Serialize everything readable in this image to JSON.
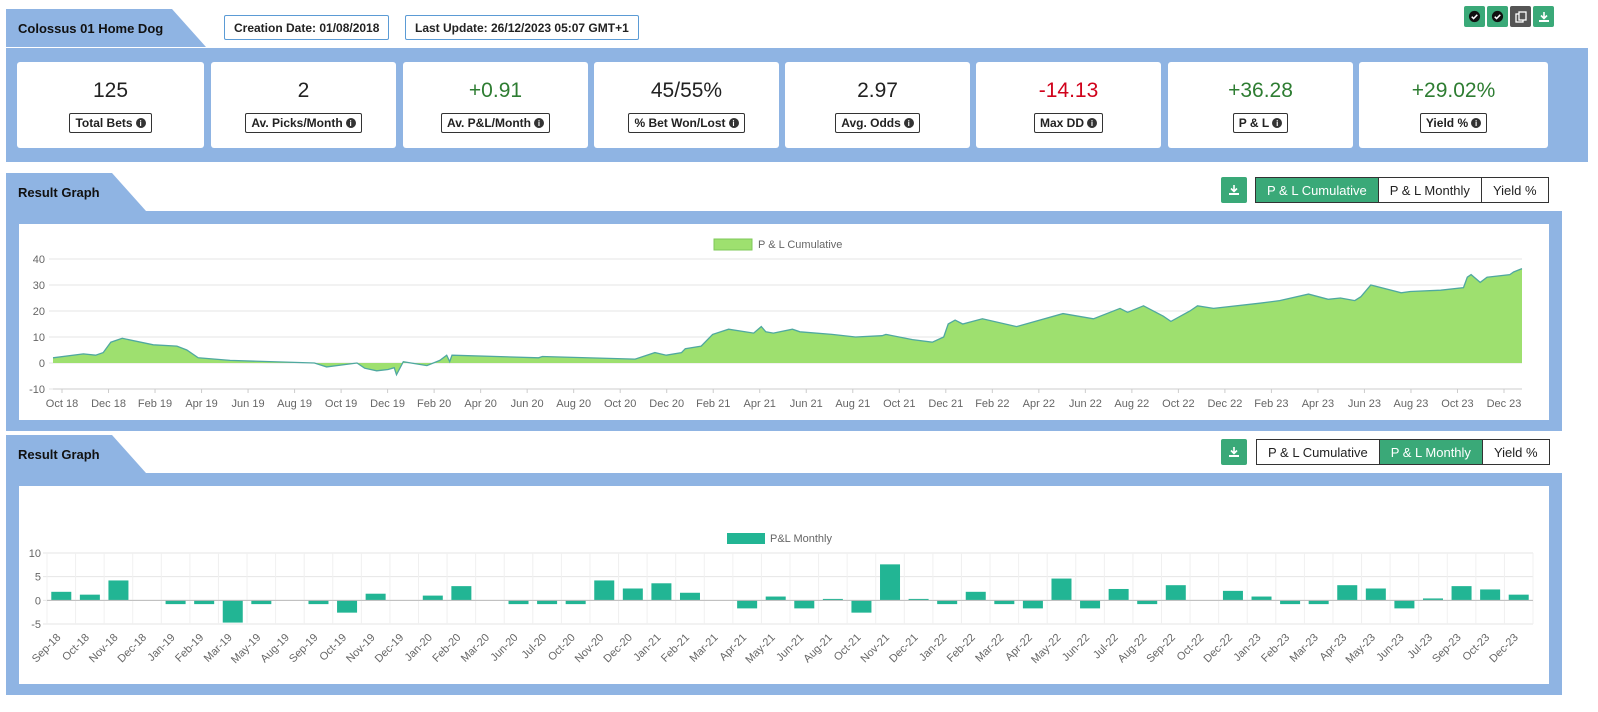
{
  "header": {
    "title": "Colossus 01 Home Dog",
    "creation_date": "Creation Date: 01/08/2018",
    "last_update": "Last Update: 26/12/2023 05:07 GMT+1"
  },
  "top_icons": [
    {
      "name": "check-circle-icon",
      "color": "#3aa978"
    },
    {
      "name": "check-circle-icon",
      "color": "#3aa978"
    },
    {
      "name": "copy-icon",
      "color": "#555555"
    },
    {
      "name": "download-icon",
      "color": "#3aa978"
    }
  ],
  "stats": [
    {
      "value": "125",
      "label": "Total Bets",
      "tone": "neu"
    },
    {
      "value": "2",
      "label": "Av. Picks/Month",
      "tone": "neu"
    },
    {
      "value": "+0.91",
      "label": "Av. P&L/Month",
      "tone": "pos"
    },
    {
      "value": "45/55%",
      "label": "% Bet Won/Lost",
      "tone": "neu"
    },
    {
      "value": "2.97",
      "label": "Avg. Odds",
      "tone": "neu"
    },
    {
      "value": "-14.13",
      "label": "Max DD",
      "tone": "neg"
    },
    {
      "value": "+36.28",
      "label": "P & L",
      "tone": "pos"
    },
    {
      "value": "+29.02%",
      "label": "Yield %",
      "tone": "pos"
    }
  ],
  "graph1": {
    "title": "Result Graph",
    "buttons": [
      "P & L Cumulative",
      "P & L Monthly",
      "Yield %"
    ],
    "active": 0
  },
  "graph2": {
    "title": "Result Graph",
    "buttons": [
      "P & L Cumulative",
      "P & L Monthly",
      "Yield %"
    ],
    "active": 1
  },
  "chart_data": [
    {
      "type": "area",
      "legend": "P & L Cumulative",
      "color": "#9ee06f",
      "line_color": "#4fa8a0",
      "ylim": [
        -10,
        40
      ],
      "yticks": [
        -10,
        0,
        10,
        20,
        30,
        40
      ],
      "x_tick_labels": [
        "Oct 18",
        "Dec 18",
        "Feb 19",
        "Apr 19",
        "Jun 19",
        "Aug 19",
        "Oct 19",
        "Dec 19",
        "Feb 20",
        "Apr 20",
        "Jun 20",
        "Aug 20",
        "Oct 20",
        "Dec 20",
        "Feb 21",
        "Apr 21",
        "Jun 21",
        "Aug 21",
        "Oct 21",
        "Dec 21",
        "Feb 22",
        "Apr 22",
        "Jun 22",
        "Aug 22",
        "Oct 22",
        "Dec 22",
        "Feb 23",
        "Apr 23",
        "Jun 23",
        "Aug 23",
        "Oct 23",
        "Dec 23"
      ],
      "x_range": [
        "2018-09-10",
        "2023-12-26"
      ],
      "x": [
        "2018-09-10",
        "2018-10-20",
        "2018-11-05",
        "2018-11-15",
        "2018-11-25",
        "2018-12-10",
        "2019-01-20",
        "2019-02-20",
        "2019-03-05",
        "2019-03-20",
        "2019-05-01",
        "2019-08-20",
        "2019-09-05",
        "2019-10-15",
        "2019-10-25",
        "2019-11-10",
        "2019-11-25",
        "2019-12-03",
        "2019-12-06",
        "2019-12-15",
        "2020-01-15",
        "2020-02-01",
        "2020-02-10",
        "2020-02-14",
        "2020-02-17",
        "2020-06-10",
        "2020-06-15",
        "2020-10-15",
        "2020-11-10",
        "2020-11-25",
        "2020-12-15",
        "2020-12-20",
        "2021-01-10",
        "2021-01-25",
        "2021-02-15",
        "2021-03-20",
        "2021-03-30",
        "2021-04-05",
        "2021-04-15",
        "2021-05-10",
        "2021-05-20",
        "2021-07-01",
        "2021-08-01",
        "2021-09-05",
        "2021-09-10",
        "2021-10-15",
        "2021-11-10",
        "2021-11-25",
        "2021-12-01",
        "2021-12-10",
        "2021-12-20",
        "2022-01-15",
        "2022-03-01",
        "2022-05-01",
        "2022-06-10",
        "2022-07-15",
        "2022-07-25",
        "2022-08-15",
        "2022-09-10",
        "2022-09-20",
        "2022-10-15",
        "2022-10-25",
        "2022-11-15",
        "2023-01-15",
        "2023-02-10",
        "2023-03-20",
        "2023-04-15",
        "2023-05-01",
        "2023-05-20",
        "2023-05-28",
        "2023-06-10",
        "2023-07-20",
        "2023-08-01",
        "2023-09-10",
        "2023-10-10",
        "2023-10-15",
        "2023-10-20",
        "2023-11-01",
        "2023-11-10",
        "2023-12-10",
        "2023-12-15",
        "2023-12-26"
      ],
      "values": [
        2,
        3.5,
        3,
        4,
        8,
        9.5,
        7,
        6.5,
        5,
        2,
        1,
        0,
        -1.5,
        0,
        -2,
        -3,
        -2.5,
        -1.8,
        -4.5,
        0.5,
        -1,
        1,
        3,
        0.5,
        3,
        2,
        2.5,
        1.5,
        4,
        3,
        4,
        5.5,
        6.5,
        11,
        13,
        11.5,
        14,
        12,
        11.5,
        13,
        12,
        11,
        10,
        10.5,
        11,
        9,
        8,
        10,
        15,
        16.5,
        15,
        17,
        14,
        19,
        17,
        21,
        19.5,
        22,
        18,
        16,
        20,
        22,
        21,
        23,
        24,
        26.5,
        24.5,
        25,
        24,
        25.5,
        30,
        27,
        27.5,
        28,
        29,
        33,
        34,
        31,
        33,
        34,
        35,
        36.3
      ]
    },
    {
      "type": "bar",
      "legend": "P&L Monthly",
      "color": "#22b594",
      "ylim": [
        -5,
        10
      ],
      "yticks": [
        -5,
        0,
        5,
        10
      ],
      "categories": [
        "Sep-18",
        "Oct-18",
        "Nov-18",
        "Dec-18",
        "Jan-19",
        "Feb-19",
        "Mar-19",
        "May-19",
        "Aug-19",
        "Sep-19",
        "Oct-19",
        "Nov-19",
        "Dec-19",
        "Jan-20",
        "Feb-20",
        "Mar-20",
        "Jun-20",
        "Jul-20",
        "Oct-20",
        "Nov-20",
        "Dec-20",
        "Jan-21",
        "Feb-21",
        "Mar-21",
        "Apr-21",
        "May-21",
        "Jun-21",
        "Aug-21",
        "Oct-21",
        "Nov-21",
        "Dec-21",
        "Jan-22",
        "Feb-22",
        "Mar-22",
        "Apr-22",
        "May-22",
        "Jun-22",
        "Jul-22",
        "Aug-22",
        "Sep-22",
        "Oct-22",
        "Dec-22",
        "Jan-23",
        "Feb-23",
        "Mar-23",
        "Apr-23",
        "May-23",
        "Jun-23",
        "Jul-23",
        "Sep-23",
        "Oct-23",
        "Dec-23"
      ],
      "values": [
        1.8,
        1.2,
        4.2,
        0,
        -0.8,
        -0.8,
        -4.7,
        -0.8,
        0,
        -0.8,
        -2.6,
        1.4,
        0,
        1,
        3,
        0,
        -0.8,
        -0.8,
        -0.8,
        4.2,
        2.5,
        3.6,
        1.6,
        0,
        -1.7,
        0.8,
        -1.7,
        0.3,
        -2.6,
        7.6,
        0.3,
        -0.8,
        1.8,
        -0.8,
        -1.7,
        4.6,
        -1.7,
        2.4,
        -0.8,
        3.2,
        0,
        2,
        0.8,
        -0.8,
        -0.8,
        3.2,
        2.5,
        -1.7,
        0.4,
        3,
        2.3,
        1.2
      ]
    }
  ]
}
